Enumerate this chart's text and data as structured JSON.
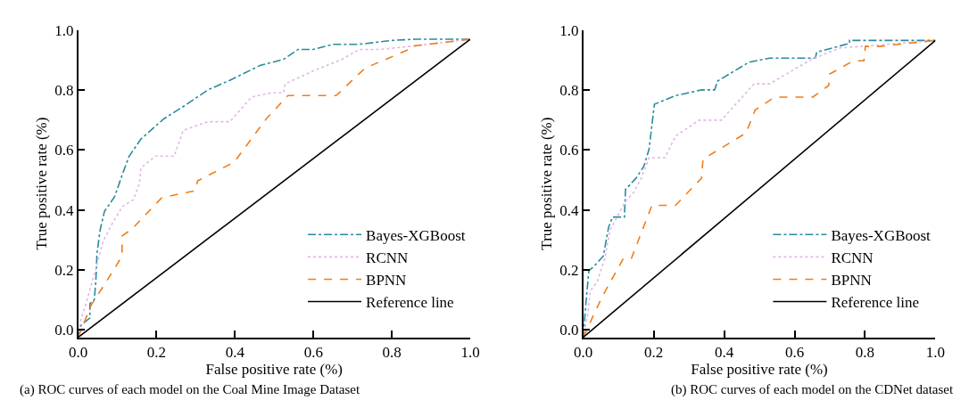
{
  "chart_data": [
    {
      "type": "line",
      "xlabel": "False positive rate (%)",
      "ylabel": "True positive rate (%)",
      "annotations": [
        "(a) ROC curves of each model on the Coal Mine Image Dataset"
      ],
      "xlim": [
        0,
        1
      ],
      "ylim": [
        -0.025,
        1.0
      ],
      "xticks": [
        {
          "value": 0,
          "label": "0.0"
        },
        {
          "value": 0.2,
          "label": "0.2"
        },
        {
          "value": 0.4,
          "label": "0.4"
        },
        {
          "value": 0.6,
          "label": "0.6"
        },
        {
          "value": 0.8,
          "label": "0.8"
        },
        {
          "value": 1,
          "label": "1.0"
        }
      ],
      "yticks": [
        {
          "value": 0,
          "label": "0.0"
        },
        {
          "value": 0.2,
          "label": "0.2"
        },
        {
          "value": 0.4,
          "label": "0.4"
        },
        {
          "value": 0.6,
          "label": "0.6"
        },
        {
          "value": 0.8,
          "label": "0.8"
        },
        {
          "value": 1,
          "label": "1.0"
        }
      ],
      "grid": false,
      "legend": "bottom right",
      "marker": "none",
      "series": [
        {
          "name": "Bayes-XGBoost",
          "color": "#2a8a9c",
          "line_style": "dashdot",
          "x": [
            0,
            0.007,
            0.03,
            0.03,
            0.041,
            0.045,
            0.048,
            0.056,
            0.067,
            0.093,
            0.112,
            0.13,
            0.16,
            0.219,
            0.271,
            0.331,
            0.39,
            0.465,
            0.524,
            0.561,
            0.599,
            0.651,
            0.717,
            0.799,
            0.859,
            1
          ],
          "values": [
            -0.025,
            0.015,
            0.04,
            0.087,
            0.1,
            0.16,
            0.255,
            0.333,
            0.395,
            0.444,
            0.516,
            0.579,
            0.636,
            0.704,
            0.747,
            0.8,
            0.834,
            0.882,
            0.902,
            0.935,
            0.935,
            0.952,
            0.952,
            0.965,
            0.969,
            0.969
          ]
        },
        {
          "name": "RCNN",
          "color": "#e3b5e8",
          "line_style": "dotted",
          "x": [
            0,
            0.007,
            0.019,
            0.033,
            0.048,
            0.063,
            0.086,
            0.112,
            0.141,
            0.156,
            0.16,
            0.197,
            0.245,
            0.268,
            0.331,
            0.387,
            0.442,
            0.494,
            0.524,
            0.528,
            0.599,
            0.673,
            0.717,
            0.77,
            0.844,
            1
          ],
          "values": [
            -0.025,
            0.034,
            0.082,
            0.149,
            0.217,
            0.294,
            0.352,
            0.41,
            0.434,
            0.487,
            0.54,
            0.579,
            0.579,
            0.665,
            0.694,
            0.694,
            0.776,
            0.791,
            0.791,
            0.82,
            0.863,
            0.902,
            0.935,
            0.935,
            0.945,
            0.969
          ]
        },
        {
          "name": "BPNN",
          "color": "#f07d1a",
          "line_style": "dashed",
          "x": [
            0,
            0.033,
            0.071,
            0.112,
            0.112,
            0.138,
            0.212,
            0.257,
            0.297,
            0.305,
            0.398,
            0.48,
            0.535,
            0.658,
            0.732,
            0.792,
            0.844,
            0.848,
            1
          ],
          "values": [
            -0.025,
            0.082,
            0.159,
            0.246,
            0.313,
            0.337,
            0.439,
            0.453,
            0.463,
            0.497,
            0.559,
            0.704,
            0.781,
            0.781,
            0.873,
            0.906,
            0.935,
            0.945,
            0.969
          ]
        },
        {
          "name": "Reference line",
          "color": "#000000",
          "line_style": "solid",
          "x": [
            0,
            1
          ],
          "values": [
            -0.025,
            0.969
          ]
        }
      ]
    },
    {
      "type": "line",
      "xlabel": "False positive rate (%)",
      "ylabel": "True positive rate (%)",
      "annotations": [
        "(b) ROC curves of each model on the CDNet dataset"
      ],
      "xlim": [
        0,
        1
      ],
      "ylim": [
        -0.025,
        1.0
      ],
      "xticks": [
        {
          "value": 0,
          "label": "0.0"
        },
        {
          "value": 0.2,
          "label": "0.2"
        },
        {
          "value": 0.4,
          "label": "0.4"
        },
        {
          "value": 0.6,
          "label": "0.6"
        },
        {
          "value": 0.8,
          "label": "0.8"
        },
        {
          "value": 1,
          "label": "1.0"
        }
      ],
      "yticks": [
        {
          "value": 0,
          "label": "0.0"
        },
        {
          "value": 0.2,
          "label": "0.2"
        },
        {
          "value": 0.4,
          "label": "0.4"
        },
        {
          "value": 0.6,
          "label": "0.6"
        },
        {
          "value": 0.8,
          "label": "0.8"
        },
        {
          "value": 1,
          "label": "1.0"
        }
      ],
      "grid": false,
      "legend": "bottom right",
      "marker": "none",
      "series": [
        {
          "name": "Bayes-XGBoost",
          "color": "#2a8a9c",
          "line_style": "dashdot",
          "x": [
            0,
            0.005,
            0.013,
            0.016,
            0.031,
            0.057,
            0.072,
            0.083,
            0.117,
            0.12,
            0.15,
            0.172,
            0.187,
            0.202,
            0.262,
            0.336,
            0.373,
            0.381,
            0.47,
            0.529,
            0.659,
            0.663,
            0.756,
            0.756,
            1
          ],
          "values": [
            -0.025,
            0.053,
            0.159,
            0.198,
            0.212,
            0.246,
            0.342,
            0.376,
            0.376,
            0.468,
            0.506,
            0.545,
            0.603,
            0.752,
            0.781,
            0.8,
            0.8,
            0.829,
            0.892,
            0.906,
            0.906,
            0.926,
            0.955,
            0.965,
            0.965
          ]
        },
        {
          "name": "RCNN",
          "color": "#e3b5e8",
          "line_style": "dotted",
          "x": [
            0,
            0.013,
            0.02,
            0.039,
            0.061,
            0.076,
            0.098,
            0.12,
            0.143,
            0.165,
            0.187,
            0.232,
            0.262,
            0.329,
            0.392,
            0.485,
            0.529,
            0.648,
            0.73,
            0.79,
            1
          ],
          "values": [
            -0.025,
            0.053,
            0.13,
            0.159,
            0.236,
            0.333,
            0.381,
            0.429,
            0.458,
            0.506,
            0.574,
            0.574,
            0.646,
            0.699,
            0.699,
            0.82,
            0.82,
            0.902,
            0.94,
            0.945,
            0.965
          ]
        },
        {
          "name": "BPNN",
          "color": "#f07d1a",
          "line_style": "dashed",
          "x": [
            0,
            0.054,
            0.113,
            0.136,
            0.195,
            0.262,
            0.336,
            0.34,
            0.462,
            0.488,
            0.544,
            0.652,
            0.697,
            0.7,
            0.767,
            0.797,
            0.801,
            0.842,
            1
          ],
          "values": [
            -0.025,
            0.111,
            0.236,
            0.236,
            0.415,
            0.415,
            0.506,
            0.569,
            0.656,
            0.733,
            0.776,
            0.776,
            0.815,
            0.853,
            0.897,
            0.897,
            0.945,
            0.945,
            0.965
          ]
        },
        {
          "name": "Reference line",
          "color": "#000000",
          "line_style": "solid",
          "x": [
            0,
            1
          ],
          "values": [
            -0.025,
            0.965
          ]
        }
      ]
    }
  ]
}
